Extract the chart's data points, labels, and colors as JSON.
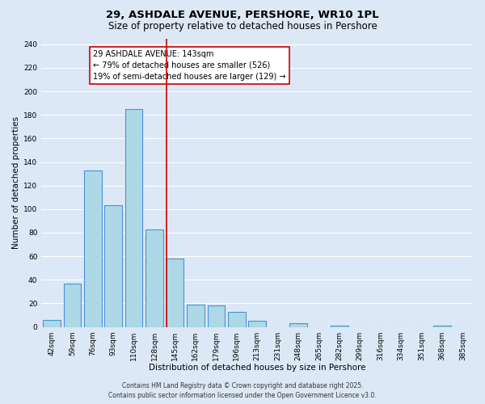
{
  "title": "29, ASHDALE AVENUE, PERSHORE, WR10 1PL",
  "subtitle": "Size of property relative to detached houses in Pershore",
  "xlabel": "Distribution of detached houses by size in Pershore",
  "ylabel": "Number of detached properties",
  "bar_labels": [
    "42sqm",
    "59sqm",
    "76sqm",
    "93sqm",
    "110sqm",
    "128sqm",
    "145sqm",
    "162sqm",
    "179sqm",
    "196sqm",
    "213sqm",
    "231sqm",
    "248sqm",
    "265sqm",
    "282sqm",
    "299sqm",
    "316sqm",
    "334sqm",
    "351sqm",
    "368sqm",
    "385sqm"
  ],
  "bar_values": [
    6,
    37,
    133,
    103,
    185,
    83,
    58,
    19,
    18,
    13,
    5,
    0,
    3,
    0,
    1,
    0,
    0,
    0,
    0,
    1,
    0
  ],
  "bar_color": "#add8e6",
  "bar_edge_color": "#4a90d9",
  "vline_color": "#cc0000",
  "annotation_title": "29 ASHDALE AVENUE: 143sqm",
  "annotation_line1": "← 79% of detached houses are smaller (526)",
  "annotation_line2": "19% of semi-detached houses are larger (129) →",
  "annotation_box_color": "#ffffff",
  "annotation_box_edge_color": "#cc0000",
  "ylim": [
    0,
    245
  ],
  "yticks": [
    0,
    20,
    40,
    60,
    80,
    100,
    120,
    140,
    160,
    180,
    200,
    220,
    240
  ],
  "bg_color": "#dce8f5",
  "plot_bg_color": "#dce8f5",
  "grid_color": "#ffffff",
  "footer_line1": "Contains HM Land Registry data © Crown copyright and database right 2025.",
  "footer_line2": "Contains public sector information licensed under the Open Government Licence v3.0.",
  "title_fontsize": 9.5,
  "subtitle_fontsize": 8.5,
  "label_fontsize": 7.5,
  "tick_fontsize": 6.5,
  "annotation_fontsize": 7,
  "footer_fontsize": 5.5
}
